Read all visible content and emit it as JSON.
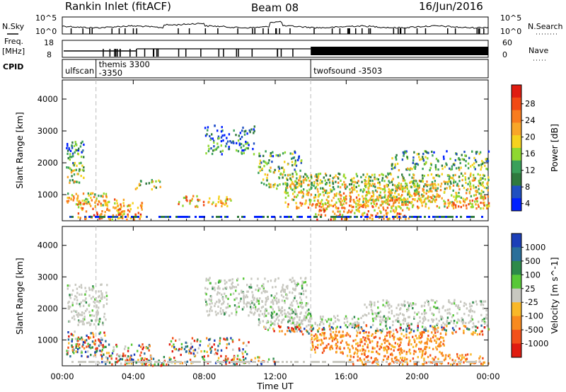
{
  "header": {
    "station": "Rankin Inlet (fitACF)",
    "beam": "Beam 08",
    "date": "16/Jun/2016"
  },
  "panel_labels": {
    "nsky": "N.Sky",
    "freq_top": "Freq.",
    "freq_unit": "[MHz]",
    "cpid": "CPID",
    "nsearch": "N.Search",
    "nave": "Nave"
  },
  "noise_axis": {
    "left": [
      "10^5",
      "10^0"
    ],
    "right": [
      "10^5",
      "10^0"
    ]
  },
  "freq_axis": {
    "left": [
      "18",
      "8"
    ],
    "right": [
      "60",
      "0"
    ]
  },
  "cpid_segments": [
    {
      "label": "ulfscan",
      "start_hour": 0.0,
      "end_hour": 1.9
    },
    {
      "label": "themis 3300",
      "label2": "-3350",
      "start_hour": 1.9,
      "end_hour": 14.0
    },
    {
      "label": "twofsound -3503",
      "start_hour": 14.0,
      "end_hour": 24.0
    }
  ],
  "chart_data": [
    {
      "type": "heatmap",
      "ylabel": "Slant Range [km]",
      "xlabel": "Time UT",
      "x_ticks": [
        "00:00",
        "04:00",
        "08:00",
        "12:00",
        "16:00",
        "20:00",
        "00:00"
      ],
      "x_range_hours": [
        0,
        24
      ],
      "y_ticks": [
        1000,
        2000,
        3000,
        4000
      ],
      "ylim": [
        180,
        4600
      ],
      "colorbar": {
        "label": "Power [dB]",
        "ticks": [
          "28",
          "24",
          "20",
          "16",
          "12",
          "8",
          "4"
        ],
        "colors": [
          "#0020ff",
          "#2050c0",
          "#2f7a3e",
          "#3aa05a",
          "#8fd830",
          "#f5d21e",
          "#f9a628",
          "#f97c1e",
          "#f24a14",
          "#e01c10"
        ]
      }
    },
    {
      "type": "heatmap",
      "ylabel": "Slant Range [km]",
      "xlabel": "Time UT",
      "x_ticks": [
        "00:00",
        "04:00",
        "08:00",
        "12:00",
        "16:00",
        "20:00",
        "00:00"
      ],
      "x_range_hours": [
        0,
        24
      ],
      "y_ticks": [
        1000,
        2000,
        3000,
        4000
      ],
      "ylim": [
        180,
        4600
      ],
      "colorbar": {
        "label": "Velocity [m s^-1]",
        "ticks": [
          "1000",
          "500",
          "100",
          "25",
          "-25",
          "-100",
          "-500",
          "-1000"
        ],
        "colors": [
          "#1c3fb8",
          "#2a6f9a",
          "#2d8a4a",
          "#58c838",
          "#c8c8c0",
          "#f9b828",
          "#f98a1e",
          "#f2501a",
          "#e01c10"
        ]
      }
    }
  ],
  "x_axis_title": "Time UT"
}
